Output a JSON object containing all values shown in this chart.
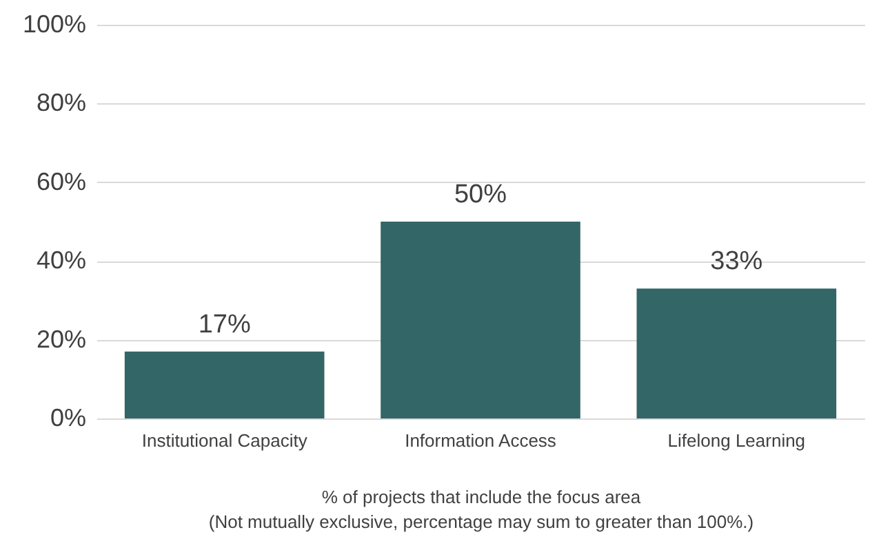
{
  "chart_data": {
    "type": "bar",
    "xlabel": "% of projects that include the focus area",
    "annotations": [
      "(Not mutually exclusive, percentage may sum to greater than 100%.)"
    ],
    "categories": [
      "Institutional Capacity",
      "Information Access",
      "Lifelong Learning"
    ],
    "values": [
      17,
      50,
      33
    ],
    "value_labels": [
      "17%",
      "50%",
      "33%"
    ],
    "color": "#336666",
    "ylim": [
      0,
      100
    ],
    "yticks": [
      {
        "value": 0,
        "label": "0%"
      },
      {
        "value": 20,
        "label": "20%"
      },
      {
        "value": 40,
        "label": "40%"
      },
      {
        "value": 60,
        "label": "60%"
      },
      {
        "value": 80,
        "label": "80%"
      },
      {
        "value": 100,
        "label": "100%"
      }
    ],
    "grid": "y"
  }
}
